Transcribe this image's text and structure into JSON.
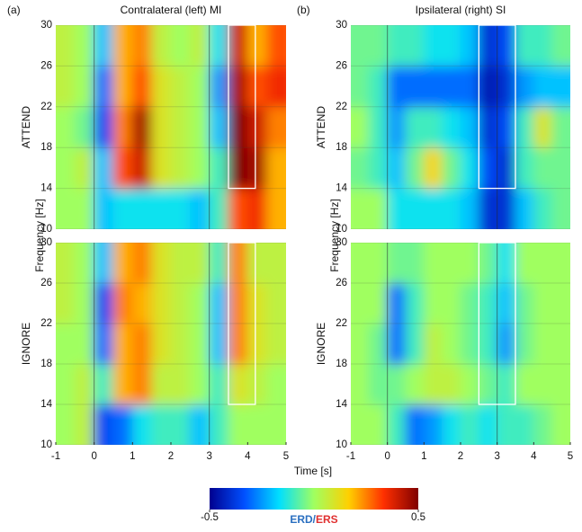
{
  "panel_labels": [
    "(a)",
    "(b)"
  ],
  "xlabel": "Time [s]",
  "colorbar": {
    "lim": [
      -0.5,
      0.5
    ],
    "ticks": [
      -0.5,
      0.5
    ],
    "label_parts": [
      "ERD",
      "/",
      "ERS"
    ],
    "label_colors": [
      "#2a6fc0",
      "#2a6fc0",
      "#e03030"
    ]
  },
  "colormap": [
    "#00008f",
    "#0050ff",
    "#00dfff",
    "#a0ff60",
    "#ffd000",
    "#ff3000",
    "#800000"
  ],
  "chart_data": [
    {
      "type": "heatmap",
      "title": "Contralateral (left) MI",
      "row_label": "ATTEND",
      "ylabel": "Frequency [Hz]",
      "x": [
        -1,
        -0.5,
        0,
        0.5,
        1,
        1.5,
        2,
        2.5,
        3,
        3.5,
        4,
        4.5,
        5
      ],
      "y": [
        10,
        14,
        18,
        22,
        26,
        30
      ],
      "ylim": [
        10,
        30
      ],
      "yticks": [
        10,
        14,
        18,
        22,
        26,
        30
      ],
      "xlim": [
        -1,
        5
      ],
      "vlines": [
        0,
        3
      ],
      "highlight": {
        "x": [
          3.5,
          4.2
        ],
        "y": [
          14,
          30
        ]
      },
      "values": [
        [
          0,
          0,
          -0.2,
          -0.15,
          -0.15,
          -0.15,
          -0.15,
          -0.2,
          -0.1,
          0.3,
          0.35,
          0.2
        ],
        [
          0,
          0.05,
          -0.2,
          0.3,
          0.4,
          0.1,
          0.05,
          0,
          -0.1,
          0.5,
          0.45,
          0.2
        ],
        [
          0,
          -0.05,
          -0.35,
          0.25,
          0.45,
          0.1,
          0.05,
          0,
          -0.2,
          0.5,
          0.4,
          0.25
        ],
        [
          0.05,
          0,
          -0.3,
          0.2,
          0.3,
          0.1,
          0.05,
          0,
          -0.25,
          0.45,
          0.3,
          0.35
        ],
        [
          0.05,
          0,
          -0.2,
          0.2,
          0.25,
          0.05,
          0,
          0.05,
          -0.15,
          0.4,
          0.2,
          0.3
        ]
      ]
    },
    {
      "type": "heatmap",
      "title": "Ipsilateral (right) SI",
      "row_label": "ATTEND",
      "ylabel": "Frequency [Hz]",
      "x": [
        -1,
        -0.5,
        0,
        0.5,
        1,
        1.5,
        2,
        2.5,
        3,
        3.5,
        4,
        4.5,
        5
      ],
      "y": [
        10,
        14,
        18,
        22,
        26,
        30
      ],
      "ylim": [
        10,
        30
      ],
      "yticks": [
        10,
        14,
        18,
        22,
        26,
        30
      ],
      "xlim": [
        -1,
        5
      ],
      "vlines": [
        0,
        3
      ],
      "highlight": {
        "x": [
          2.5,
          3.5
        ],
        "y": [
          14,
          30
        ]
      },
      "values": [
        [
          0,
          0,
          -0.15,
          -0.15,
          -0.15,
          -0.15,
          -0.2,
          -0.4,
          -0.4,
          -0.2,
          -0.1,
          -0.05
        ],
        [
          -0.05,
          -0.1,
          -0.2,
          -0.05,
          0.15,
          -0.05,
          -0.15,
          -0.35,
          -0.4,
          -0.1,
          -0.05,
          -0.05
        ],
        [
          0,
          -0.1,
          -0.25,
          -0.1,
          -0.1,
          -0.15,
          -0.2,
          -0.4,
          -0.35,
          -0.1,
          0.1,
          -0.05
        ],
        [
          -0.05,
          -0.1,
          -0.3,
          -0.3,
          -0.3,
          -0.3,
          -0.3,
          -0.45,
          -0.4,
          -0.25,
          -0.2,
          -0.2
        ],
        [
          -0.05,
          -0.05,
          -0.1,
          -0.1,
          -0.15,
          -0.15,
          -0.2,
          -0.4,
          -0.35,
          -0.1,
          -0.1,
          -0.05
        ]
      ]
    },
    {
      "type": "heatmap",
      "row_label": "IGNORE",
      "x": [
        -1,
        -0.5,
        0,
        0.5,
        1,
        1.5,
        2,
        2.5,
        3,
        3.5,
        4,
        4.5,
        5
      ],
      "y": [
        10,
        14,
        18,
        22,
        26,
        30
      ],
      "ylim": [
        10,
        30
      ],
      "yticks": [
        10,
        14,
        18,
        22,
        26,
        30
      ],
      "xlim": [
        -1,
        5
      ],
      "xticks": [
        -1,
        0,
        1,
        2,
        3,
        4,
        5
      ],
      "vlines": [
        0,
        3
      ],
      "highlight": {
        "x": [
          3.5,
          4.2
        ],
        "y": [
          14,
          30
        ]
      },
      "values": [
        [
          0,
          0.05,
          -0.35,
          -0.3,
          -0.15,
          -0.1,
          -0.1,
          -0.2,
          -0.1,
          0,
          0,
          0
        ],
        [
          0,
          0.05,
          -0.1,
          0.2,
          0.25,
          0.05,
          0.05,
          0,
          -0.1,
          0.1,
          0.05,
          0
        ],
        [
          0,
          0,
          -0.3,
          0.2,
          0.25,
          0.1,
          0.05,
          0,
          -0.2,
          0.25,
          0.1,
          0.05
        ],
        [
          0.05,
          0,
          -0.35,
          0.25,
          0.2,
          0.1,
          0.05,
          0,
          -0.2,
          0.25,
          0.1,
          0.05
        ],
        [
          0.05,
          0,
          -0.2,
          0.2,
          0.25,
          0.1,
          0.05,
          0.05,
          -0.1,
          0.25,
          0.05,
          0.05
        ]
      ]
    },
    {
      "type": "heatmap",
      "row_label": "IGNORE",
      "x": [
        -1,
        -0.5,
        0,
        0.5,
        1,
        1.5,
        2,
        2.5,
        3,
        3.5,
        4,
        4.5,
        5
      ],
      "y": [
        10,
        14,
        18,
        22,
        26,
        30
      ],
      "ylim": [
        10,
        30
      ],
      "yticks": [
        10,
        14,
        18,
        22,
        26,
        30
      ],
      "xlim": [
        -1,
        5
      ],
      "xticks": [
        -1,
        0,
        1,
        2,
        3,
        4,
        5
      ],
      "vlines": [
        0,
        3
      ],
      "highlight": {
        "x": [
          2.5,
          3.5
        ],
        "y": [
          14,
          30
        ]
      },
      "values": [
        [
          0,
          0,
          -0.1,
          -0.3,
          -0.25,
          -0.15,
          -0.1,
          -0.15,
          -0.1,
          -0.1,
          -0.05,
          0
        ],
        [
          0,
          -0.05,
          -0.05,
          0,
          0.05,
          0.05,
          0,
          -0.05,
          -0.1,
          0,
          0,
          0
        ],
        [
          0,
          -0.05,
          -0.3,
          -0.1,
          0.05,
          0,
          -0.05,
          -0.1,
          -0.25,
          -0.05,
          0,
          0
        ],
        [
          0,
          0,
          -0.3,
          -0.1,
          0,
          0,
          -0.05,
          -0.1,
          -0.2,
          -0.05,
          0,
          0
        ],
        [
          0,
          0,
          -0.05,
          -0.05,
          0,
          0,
          0,
          -0.05,
          -0.15,
          0,
          0,
          0
        ]
      ]
    }
  ]
}
